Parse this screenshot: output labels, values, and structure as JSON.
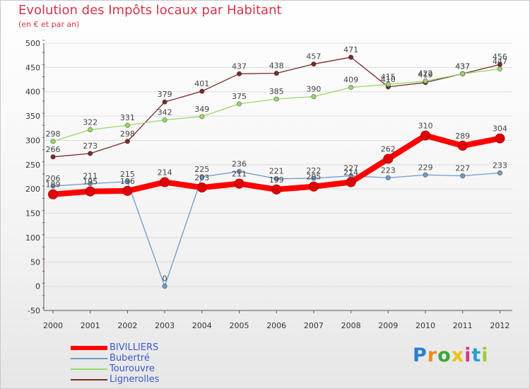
{
  "title": "Evolution des Impôts locaux par Habitant",
  "subtitle": "(en € et par an)",
  "chart_data": {
    "type": "line",
    "title": "Evolution des Impôts locaux par Habitant",
    "ylabel": "(en € et par an)",
    "xlabel": "",
    "x": [
      "2000",
      "2001",
      "2002",
      "2003",
      "2004",
      "2005",
      "2006",
      "2007",
      "2008",
      "2009",
      "2010",
      "2011",
      "2012"
    ],
    "ylim": [
      -50,
      500
    ],
    "yticks": [
      "-50",
      "0",
      "50",
      "100",
      "150",
      "200",
      "250",
      "300",
      "350",
      "400",
      "450",
      "500"
    ],
    "series": [
      {
        "name": "BIVILLIERS",
        "color": "#ff0000",
        "values": [
          189,
          195,
          196,
          214,
          203,
          211,
          199,
          205,
          214,
          262,
          310,
          289,
          304
        ]
      },
      {
        "name": "Bubertré",
        "color": "#6f9bc8",
        "values": [
          206,
          211,
          215,
          0,
          225,
          236,
          221,
          222,
          227,
          223,
          229,
          227,
          233
        ]
      },
      {
        "name": "Tourouvre",
        "color": "#9ad86a",
        "values": [
          298,
          322,
          331,
          342,
          349,
          375,
          385,
          390,
          409,
          415,
          422,
          437,
          447
        ]
      },
      {
        "name": "Lignerolles",
        "color": "#7a2a2a",
        "values": [
          266,
          273,
          298,
          379,
          401,
          437,
          438,
          457,
          471,
          410,
          419,
          437,
          456
        ]
      }
    ]
  },
  "legend": {
    "items": [
      {
        "label": "BIVILLIERS"
      },
      {
        "label": "Bubertré"
      },
      {
        "label": "Tourouvre"
      },
      {
        "label": "Lignerolles"
      }
    ]
  },
  "logo": {
    "letters": [
      "P",
      "r",
      "o",
      "x",
      "i",
      "t",
      "i"
    ],
    "colors": [
      "#2a7fd0",
      "#f08a1e",
      "#3aa63a",
      "#e8c21a",
      "#d03a8a",
      "#2a9fd0",
      "#9acd32"
    ]
  }
}
